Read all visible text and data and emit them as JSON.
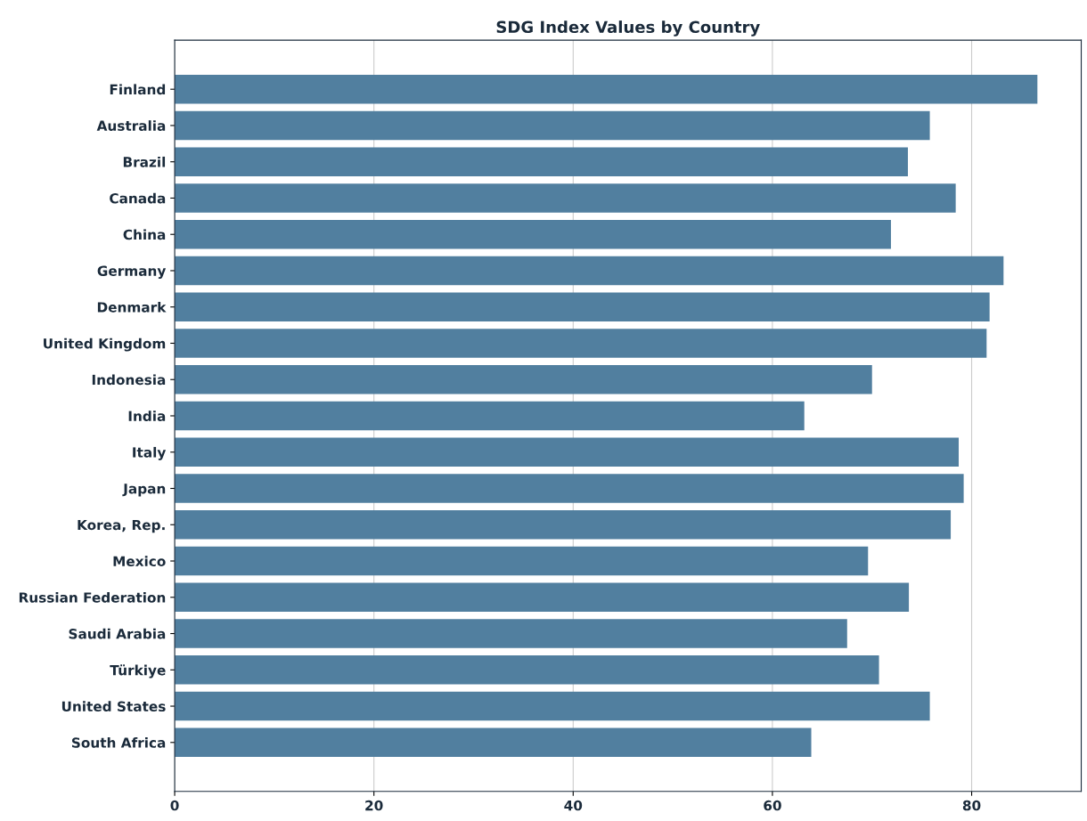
{
  "chart_data": {
    "type": "bar",
    "orientation": "horizontal",
    "title": "SDG Index Values by Country",
    "categories": [
      "Finland",
      "Australia",
      "Brazil",
      "Canada",
      "China",
      "Germany",
      "Denmark",
      "United Kingdom",
      "Indonesia",
      "India",
      "Italy",
      "Japan",
      "Korea, Rep.",
      "Mexico",
      "Russian Federation",
      "Saudi Arabia",
      "Türkiye",
      "United States",
      "South Africa"
    ],
    "values": [
      86.6,
      75.8,
      73.6,
      78.4,
      71.9,
      83.2,
      81.8,
      81.5,
      70.0,
      63.2,
      78.7,
      79.2,
      77.9,
      69.6,
      73.7,
      67.5,
      70.7,
      75.8,
      63.9
    ],
    "color": "#517f9f",
    "xlim": [
      0,
      91
    ],
    "xticks": [
      0,
      20,
      40,
      60,
      80
    ],
    "grid": "x"
  }
}
